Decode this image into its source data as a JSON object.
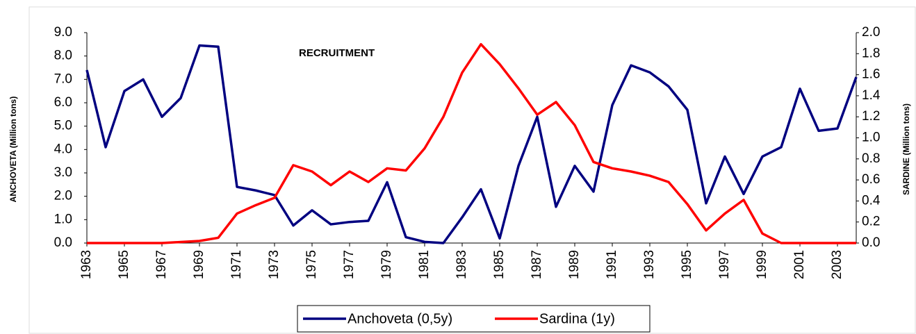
{
  "chart_data": {
    "type": "line",
    "annotation": "RECRUITMENT",
    "y_label": "ANCHOVETA (Million tons)",
    "y2_label": "SARDINE (Million tons)",
    "x": [
      1963,
      1964,
      1965,
      1966,
      1967,
      1968,
      1969,
      1970,
      1971,
      1972,
      1973,
      1974,
      1975,
      1976,
      1977,
      1978,
      1979,
      1980,
      1981,
      1982,
      1983,
      1984,
      1985,
      1986,
      1987,
      1988,
      1989,
      1990,
      1991,
      1992,
      1993,
      1994,
      1995,
      1996,
      1997,
      1998,
      1999,
      2000,
      2001,
      2002,
      2003,
      2004
    ],
    "xlim": [
      1963,
      2004
    ],
    "xticks": [
      1963,
      1965,
      1967,
      1969,
      1971,
      1973,
      1975,
      1977,
      1979,
      1981,
      1983,
      1985,
      1987,
      1989,
      1991,
      1993,
      1995,
      1997,
      1999,
      2001,
      2003
    ],
    "ylim": [
      0,
      9
    ],
    "yticks": [
      {
        "value": 0,
        "label": "0.0"
      },
      {
        "value": 1,
        "label": "1.0"
      },
      {
        "value": 2,
        "label": "2.0"
      },
      {
        "value": 3,
        "label": "3.0"
      },
      {
        "value": 4,
        "label": "4.0"
      },
      {
        "value": 5,
        "label": "5.0"
      },
      {
        "value": 6,
        "label": "6.0"
      },
      {
        "value": 7,
        "label": "7.0"
      },
      {
        "value": 8,
        "label": "8.0"
      },
      {
        "value": 9,
        "label": "9.0"
      }
    ],
    "y2lim": [
      0,
      2
    ],
    "y2ticks": [
      {
        "value": 0,
        "label": "0.0"
      },
      0.2,
      0.4,
      0.6,
      0.8,
      {
        "value": 1,
        "label": "1.0"
      },
      1.2,
      1.4,
      1.6,
      1.8,
      {
        "value": 2,
        "label": "2.0"
      }
    ],
    "series": [
      {
        "name": "Anchoveta (0,5y)",
        "color": "#000080",
        "values": [
          7.4,
          4.1,
          6.5,
          7.0,
          5.4,
          6.2,
          8.45,
          8.4,
          2.4,
          2.25,
          2.05,
          0.75,
          1.4,
          0.8,
          0.9,
          0.95,
          2.6,
          0.25,
          0.05,
          0.0,
          1.1,
          2.3,
          0.2,
          3.3,
          5.4,
          1.55,
          3.3,
          2.2,
          5.9,
          7.6,
          7.3,
          6.7,
          5.7,
          1.7,
          3.7,
          2.1,
          3.7,
          4.1,
          6.6,
          4.8,
          4.9,
          7.1
        ]
      },
      {
        "name": "Sardina (1y)",
        "color": "#ff0000",
        "axis": "y2",
        "values": [
          0,
          0,
          0,
          0,
          0,
          0.01,
          0.02,
          0.05,
          0.28,
          0.36,
          0.43,
          0.74,
          0.68,
          0.55,
          0.68,
          0.58,
          0.71,
          0.69,
          0.9,
          1.2,
          1.62,
          1.89,
          1.7,
          1.47,
          1.22,
          1.34,
          1.12,
          0.77,
          0.71,
          0.68,
          0.64,
          0.58,
          0.37,
          0.12,
          0.28,
          0.41,
          0.09,
          0.0,
          0,
          0,
          0,
          0
        ]
      }
    ]
  }
}
